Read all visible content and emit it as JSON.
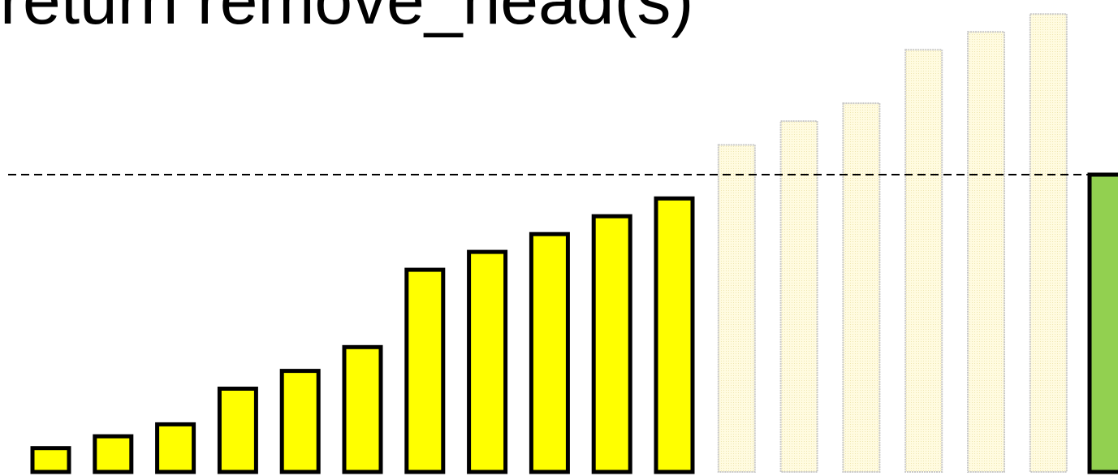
{
  "caption": "return remove_head(s)",
  "colors": {
    "active_fill": "#ffff00",
    "active_stroke": "#000000",
    "ghost_fill": "#fffbe0",
    "ghost_stroke": "#c8c8c8",
    "result_fill": "#92d050",
    "threshold_line": "#000000"
  },
  "chart_data": {
    "type": "bar",
    "note_values": "relative bar heights (unitless, read from the picture)",
    "active_bars": [
      2,
      3,
      4,
      7,
      8.5,
      10.5,
      17,
      18.5,
      20,
      21.5,
      23
    ],
    "ghost_bars": [
      27.5,
      29.5,
      31,
      35.5,
      37,
      38.5
    ],
    "result_bar": 25,
    "threshold": 25,
    "ymax": 39
  }
}
